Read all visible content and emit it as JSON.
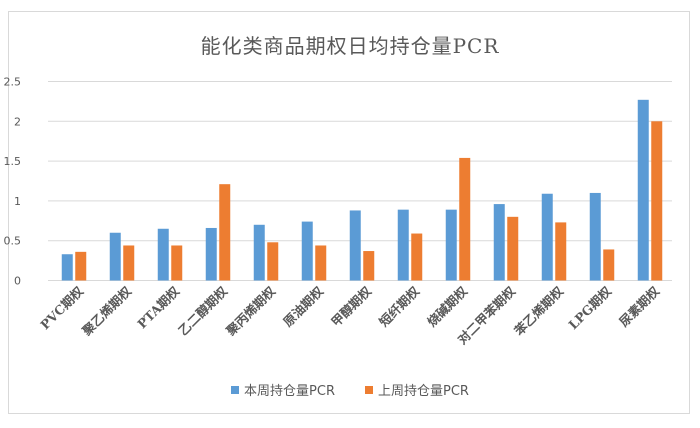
{
  "chart_data": {
    "type": "bar",
    "title": "能化类商品期权日均持仓量PCR",
    "xlabel": "",
    "ylabel": "",
    "ylim": [
      0,
      2.5
    ],
    "yticks": [
      0,
      0.5,
      1,
      1.5,
      2,
      2.5
    ],
    "ytick_labels": [
      "0",
      "0.5",
      "1",
      "1.5",
      "2",
      "2.5"
    ],
    "grid": true,
    "legend_position": "bottom",
    "categories": [
      "PVC期权",
      "聚乙烯期权",
      "PTA期权",
      "乙二醇期权",
      "聚丙烯期权",
      "原油期权",
      "甲醇期权",
      "短纤期权",
      "烧碱期权",
      "对二甲苯期权",
      "苯乙烯期权",
      "LPG期权",
      "尿素期权"
    ],
    "series": [
      {
        "name": "本周持仓量PCR",
        "color": "#5B9BD5",
        "values": [
          0.33,
          0.6,
          0.65,
          0.66,
          0.7,
          0.74,
          0.88,
          0.89,
          0.89,
          0.96,
          1.09,
          1.1,
          2.27
        ]
      },
      {
        "name": "上周持仓量PCR",
        "color": "#ED7D31",
        "values": [
          0.36,
          0.44,
          0.44,
          1.21,
          0.48,
          0.44,
          0.37,
          0.59,
          1.54,
          0.8,
          0.73,
          0.39,
          2.0
        ]
      }
    ]
  },
  "legend": {
    "items": [
      {
        "label": "本周持仓量PCR",
        "color": "#5B9BD5"
      },
      {
        "label": "上周持仓量PCR",
        "color": "#ED7D31"
      }
    ]
  }
}
